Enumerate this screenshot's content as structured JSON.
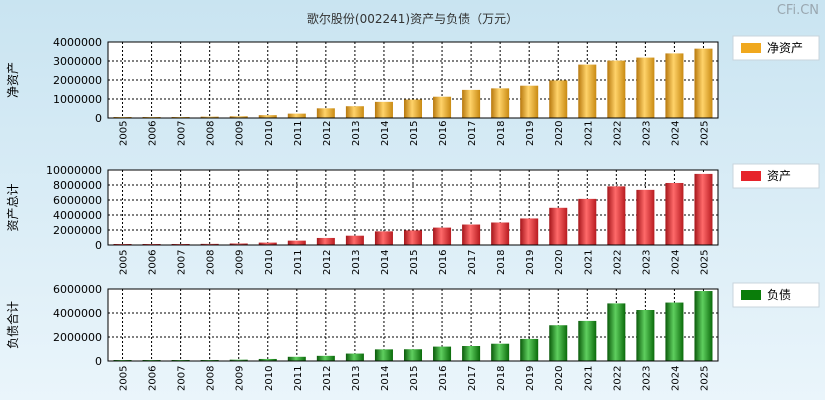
{
  "title": "歌尔股份(002241)资产与负债（万元）",
  "brand": "CFi.CN",
  "colors": {
    "net_assets": "#f0a81e",
    "total_assets": "#e6232a",
    "liabilities": "#0a7d0a"
  },
  "chart_data": [
    {
      "type": "bar",
      "ylabel": "净资产",
      "legend": "净资产",
      "legend_position": "right",
      "ylim": [
        0,
        4000000
      ],
      "yticks": [
        "0",
        "1000000",
        "2000000",
        "3000000",
        "4000000"
      ],
      "categories": [
        "2005",
        "2006",
        "2007",
        "2008",
        "2009",
        "2010",
        "2011",
        "2012",
        "2013",
        "2014",
        "2015",
        "2016",
        "2017",
        "2018",
        "2019",
        "2020",
        "2021",
        "2022",
        "2023",
        "2024",
        "2025"
      ],
      "values": [
        10000,
        15000,
        40000,
        70000,
        90000,
        150000,
        230000,
        510000,
        620000,
        850000,
        970000,
        1120000,
        1480000,
        1560000,
        1700000,
        1980000,
        2810000,
        3020000,
        3180000,
        3400000,
        3650000
      ],
      "grid": true
    },
    {
      "type": "bar",
      "ylabel": "资产总计",
      "legend": "资产",
      "legend_position": "right",
      "ylim": [
        0,
        10000000
      ],
      "yticks": [
        "0",
        "2000000",
        "4000000",
        "6000000",
        "8000000",
        "10000000"
      ],
      "categories": [
        "2005",
        "2006",
        "2007",
        "2008",
        "2009",
        "2010",
        "2011",
        "2012",
        "2013",
        "2014",
        "2015",
        "2016",
        "2017",
        "2018",
        "2019",
        "2020",
        "2021",
        "2022",
        "2023",
        "2024",
        "2025"
      ],
      "values": [
        20000,
        40000,
        80000,
        150000,
        200000,
        320000,
        580000,
        940000,
        1240000,
        1820000,
        1950000,
        2320000,
        2730000,
        3000000,
        3540000,
        4960000,
        6150000,
        7820000,
        7350000,
        8270000,
        9480000
      ],
      "grid": true
    },
    {
      "type": "bar",
      "ylabel": "负债合计",
      "legend": "负债",
      "legend_position": "right",
      "ylim": [
        0,
        6000000
      ],
      "yticks": [
        "0",
        "2000000",
        "4000000",
        "6000000"
      ],
      "categories": [
        "2005",
        "2006",
        "2007",
        "2008",
        "2009",
        "2010",
        "2011",
        "2012",
        "2013",
        "2014",
        "2015",
        "2016",
        "2017",
        "2018",
        "2019",
        "2020",
        "2021",
        "2022",
        "2023",
        "2024",
        "2025"
      ],
      "values": [
        10000,
        20000,
        40000,
        80000,
        110000,
        170000,
        350000,
        430000,
        620000,
        970000,
        980000,
        1200000,
        1250000,
        1440000,
        1840000,
        2980000,
        3340000,
        4800000,
        4250000,
        4870000,
        5830000
      ],
      "grid": true
    }
  ]
}
